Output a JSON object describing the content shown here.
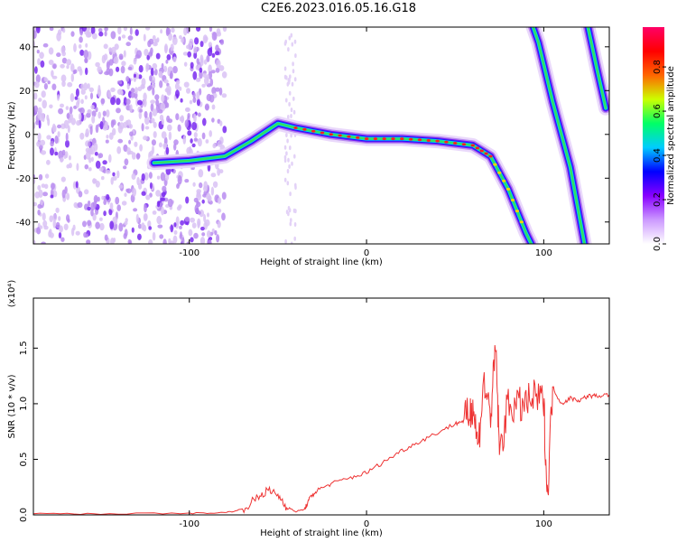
{
  "title": "C2E6.2023.016.05.16.G18",
  "chart_data": [
    {
      "type": "heatmap",
      "xlabel": "Height of straight line (km)",
      "ylabel": "Frequency (Hz)",
      "xlim": [
        -188,
        137
      ],
      "ylim": [
        -50,
        49
      ],
      "xticks": [
        -100,
        0,
        100
      ],
      "yticks": [
        -40,
        -20,
        0,
        20,
        40
      ],
      "colorbar": {
        "label": "Normalized spectral amplitude",
        "range": [
          0,
          1
        ],
        "ticks": [
          "0.0",
          "0.2",
          "0.4",
          "0.6",
          "0.8"
        ],
        "colors": [
          "#ffffff",
          "#cc99ff",
          "#8800ff",
          "#0000ff",
          "#00ccff",
          "#00ff66",
          "#ccff00",
          "#ff6600",
          "#ff0000",
          "#ff0066"
        ]
      },
      "noise_region_x": [
        -188,
        -80
      ],
      "main_trace": [
        {
          "x": -120,
          "y": -13
        },
        {
          "x": -100,
          "y": -12
        },
        {
          "x": -80,
          "y": -10
        },
        {
          "x": -65,
          "y": -3
        },
        {
          "x": -50,
          "y": 5
        },
        {
          "x": -40,
          "y": 3
        },
        {
          "x": -20,
          "y": 0
        },
        {
          "x": 0,
          "y": -2
        },
        {
          "x": 20,
          "y": -2
        },
        {
          "x": 40,
          "y": -3
        },
        {
          "x": 60,
          "y": -5
        },
        {
          "x": 70,
          "y": -10
        },
        {
          "x": 80,
          "y": -25
        },
        {
          "x": 90,
          "y": -45
        },
        {
          "x": 93,
          "y": -50
        }
      ],
      "aliased_traces": [
        [
          {
            "x": 94,
            "y": 49
          },
          {
            "x": 97,
            "y": 42
          },
          {
            "x": 105,
            "y": 15
          },
          {
            "x": 115,
            "y": -15
          },
          {
            "x": 123,
            "y": -50
          }
        ],
        [
          {
            "x": 125,
            "y": 49
          },
          {
            "x": 130,
            "y": 30
          },
          {
            "x": 135,
            "y": 12
          }
        ]
      ]
    },
    {
      "type": "line",
      "xlabel": "Height of straight line (km)",
      "ylabel": "SNR (10 * v/v)",
      "multiplier": "(x10⁴)",
      "xlim": [
        -188,
        137
      ],
      "ylim": [
        0,
        1.95
      ],
      "xticks": [
        -100,
        0,
        100
      ],
      "yticks": [
        0.0,
        0.5,
        1.0,
        1.5
      ],
      "color": "#ee3333",
      "series": [
        {
          "x": [
            -188,
            -150,
            -100,
            -80,
            -70,
            -62,
            -56,
            -50,
            -45,
            -40,
            -35,
            -32,
            -28,
            -20,
            -10,
            0,
            10,
            20,
            30,
            40,
            50,
            55,
            58,
            60,
            63,
            66,
            70,
            73,
            75,
            80,
            85,
            90,
            95,
            100,
            102,
            105,
            110,
            115,
            120,
            125,
            130,
            137
          ],
          "y": [
            0.01,
            0.01,
            0.015,
            0.02,
            0.05,
            0.15,
            0.22,
            0.18,
            0.07,
            0.03,
            0.05,
            0.15,
            0.22,
            0.28,
            0.33,
            0.38,
            0.48,
            0.58,
            0.66,
            0.74,
            0.82,
            0.85,
            0.9,
            1.0,
            0.6,
            1.2,
            0.9,
            1.5,
            0.55,
            1.0,
            0.97,
            1.0,
            1.05,
            1.02,
            0.15,
            1.15,
            1.0,
            1.05,
            1.03,
            1.07,
            1.07,
            1.08
          ]
        }
      ]
    }
  ]
}
